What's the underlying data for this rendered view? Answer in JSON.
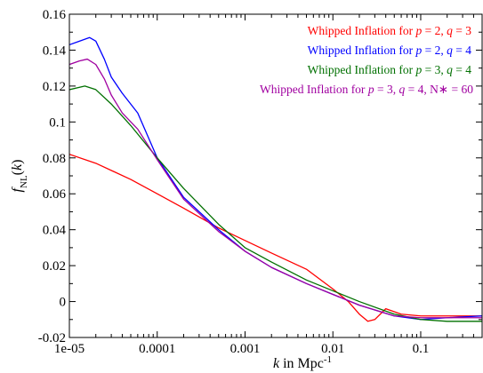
{
  "chart_data": {
    "type": "line",
    "xscale": "log",
    "xlim": [
      1e-05,
      0.5
    ],
    "ylim": [
      -0.02,
      0.16
    ],
    "xticks": [
      {
        "value": 1e-05,
        "label": "1e-05"
      },
      {
        "value": 0.0001,
        "label": "0.0001"
      },
      {
        "value": 0.001,
        "label": "0.001"
      },
      {
        "value": 0.01,
        "label": "0.01"
      },
      {
        "value": 0.1,
        "label": "0.1"
      }
    ],
    "yticks": [
      {
        "value": -0.02,
        "label": "-0.02"
      },
      {
        "value": 0,
        "label": "0"
      },
      {
        "value": 0.02,
        "label": "0.02"
      },
      {
        "value": 0.04,
        "label": "0.04"
      },
      {
        "value": 0.06,
        "label": "0.06"
      },
      {
        "value": 0.08,
        "label": "0.08"
      },
      {
        "value": 0.1,
        "label": "0.1"
      },
      {
        "value": 0.12,
        "label": "0.12"
      },
      {
        "value": 0.14,
        "label": "0.14"
      },
      {
        "value": 0.16,
        "label": "0.16"
      }
    ],
    "xlabel": {
      "var": "k",
      "rest": " in Mpc",
      "sup": "-1"
    },
    "ylabel": {
      "var": "f",
      "sub": "NL",
      "rest": "(",
      "var2": "k",
      "end": ")"
    },
    "legend_position": "top-right",
    "series": [
      {
        "color": "#ff0000",
        "legend": {
          "text1": "Whipped Inflation for ",
          "p": "2",
          "q": "3",
          "extra": ""
        },
        "x": [
          1e-05,
          2e-05,
          5e-05,
          0.0001,
          0.0002,
          0.0005,
          0.001,
          0.002,
          0.005,
          0.01,
          0.015,
          0.02,
          0.025,
          0.03,
          0.04,
          0.06,
          0.1,
          0.2,
          0.5
        ],
        "y": [
          0.082,
          0.077,
          0.068,
          0.06,
          0.052,
          0.041,
          0.034,
          0.027,
          0.018,
          0.007,
          0.0,
          -0.007,
          -0.011,
          -0.01,
          -0.004,
          -0.007,
          -0.008,
          -0.008,
          -0.008
        ]
      },
      {
        "color": "#0000ff",
        "legend": {
          "text1": "Whipped Inflation for ",
          "p": "2",
          "q": "4",
          "extra": ""
        },
        "x": [
          1e-05,
          1.3e-05,
          1.7e-05,
          2e-05,
          2.5e-05,
          3e-05,
          4e-05,
          6e-05,
          0.0001,
          0.0002,
          0.0005,
          0.001,
          0.002,
          0.005,
          0.01,
          0.02,
          0.05,
          0.1,
          0.2,
          0.5
        ],
        "y": [
          0.143,
          0.145,
          0.147,
          0.145,
          0.135,
          0.125,
          0.116,
          0.105,
          0.08,
          0.058,
          0.04,
          0.028,
          0.019,
          0.01,
          0.004,
          -0.002,
          -0.008,
          -0.01,
          -0.009,
          -0.008
        ]
      },
      {
        "color": "#007000",
        "legend": {
          "text1": "Whipped Inflation for ",
          "p": "3",
          "q": "4",
          "extra": ""
        },
        "x": [
          1e-05,
          1.5e-05,
          2e-05,
          3e-05,
          5e-05,
          0.0001,
          0.0002,
          0.0005,
          0.001,
          0.002,
          0.005,
          0.01,
          0.02,
          0.05,
          0.1,
          0.2,
          0.5
        ],
        "y": [
          0.118,
          0.12,
          0.118,
          0.11,
          0.098,
          0.08,
          0.063,
          0.043,
          0.03,
          0.022,
          0.012,
          0.006,
          0.0,
          -0.007,
          -0.01,
          -0.011,
          -0.011
        ]
      },
      {
        "color": "#a000a0",
        "legend": {
          "text1": "Whipped Inflation for ",
          "p": "3",
          "q": "4",
          "extra": ", N∗ = 60"
        },
        "x": [
          1e-05,
          1.3e-05,
          1.6e-05,
          2e-05,
          2.5e-05,
          3e-05,
          4e-05,
          6e-05,
          0.0001,
          0.0002,
          0.0005,
          0.001,
          0.002,
          0.005,
          0.01,
          0.02,
          0.05,
          0.1,
          0.2,
          0.5
        ],
        "y": [
          0.132,
          0.134,
          0.135,
          0.132,
          0.124,
          0.115,
          0.105,
          0.096,
          0.079,
          0.057,
          0.039,
          0.028,
          0.019,
          0.01,
          0.004,
          -0.002,
          -0.008,
          -0.009,
          -0.009,
          -0.009
        ]
      }
    ]
  }
}
